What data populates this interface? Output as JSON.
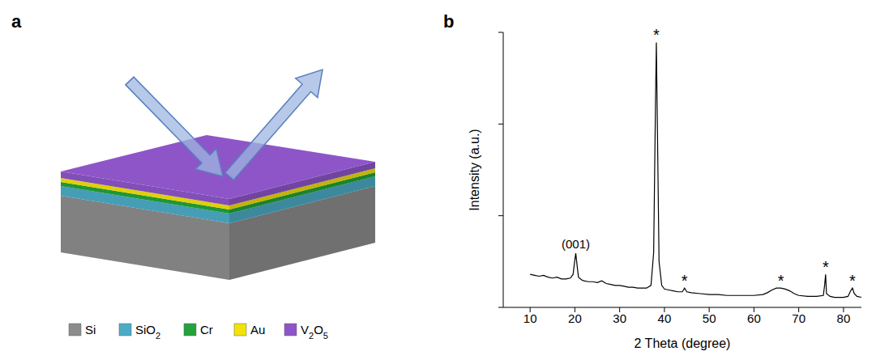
{
  "diagram": {
    "label": "a",
    "layers": [
      {
        "name": "Si",
        "color": "#8c8c8c"
      },
      {
        "name": "SiO2",
        "color": "#4bacc6"
      },
      {
        "name": "Cr",
        "color": "#23a33c"
      },
      {
        "name": "Au",
        "color": "#f2e20a"
      },
      {
        "name": "V2O5",
        "color": "#8e55c8"
      }
    ]
  },
  "chart_data": {
    "label": "b",
    "type": "line",
    "x_label": "2 Theta (degree)",
    "y_label": "Intensity (a.u.)",
    "color": "#000000",
    "xlim": [
      4,
      84
    ],
    "xticks": [
      10,
      20,
      30,
      40,
      50,
      60,
      70,
      80
    ],
    "ylim": [
      0,
      3
    ],
    "yticks": [
      0,
      1,
      2,
      3
    ],
    "tick_labels": "x",
    "x": [
      10,
      11,
      12,
      13,
      14,
      15,
      16,
      17,
      18,
      19,
      19.6,
      20,
      20.2,
      20.4,
      20.8,
      21.5,
      22,
      23,
      24,
      25,
      26,
      27,
      28,
      29,
      30,
      31,
      32,
      33,
      34,
      35,
      36,
      37,
      37.6,
      38,
      38.2,
      38.4,
      38.8,
      39.4,
      40,
      41,
      42,
      43,
      44,
      44.5,
      45,
      46,
      48,
      50,
      52,
      54,
      56,
      58,
      60,
      62,
      63,
      64,
      65,
      66,
      67,
      68,
      69,
      70,
      72,
      74,
      75.5,
      75.8,
      76,
      76.2,
      77,
      78,
      79,
      80,
      81,
      81.6,
      82,
      82.4,
      83,
      84
    ],
    "values": [
      0.36,
      0.35,
      0.34,
      0.35,
      0.33,
      0.32,
      0.33,
      0.31,
      0.31,
      0.32,
      0.36,
      0.52,
      0.59,
      0.5,
      0.33,
      0.3,
      0.29,
      0.28,
      0.28,
      0.27,
      0.29,
      0.26,
      0.25,
      0.24,
      0.24,
      0.23,
      0.22,
      0.22,
      0.21,
      0.21,
      0.21,
      0.24,
      0.6,
      2.2,
      2.89,
      2.1,
      0.5,
      0.24,
      0.2,
      0.19,
      0.18,
      0.17,
      0.17,
      0.21,
      0.17,
      0.16,
      0.15,
      0.14,
      0.14,
      0.13,
      0.13,
      0.13,
      0.13,
      0.14,
      0.16,
      0.19,
      0.21,
      0.21,
      0.2,
      0.18,
      0.15,
      0.13,
      0.12,
      0.12,
      0.13,
      0.25,
      0.36,
      0.15,
      0.12,
      0.11,
      0.11,
      0.11,
      0.12,
      0.18,
      0.21,
      0.15,
      0.12,
      0.11
    ],
    "annotations": [
      {
        "text": "(001)",
        "x": 20.2,
        "y": 0.59
      },
      {
        "text": "*",
        "x": 38.2,
        "y": 2.89
      },
      {
        "text": "*",
        "x": 44.5,
        "y": 0.21
      },
      {
        "text": "*",
        "x": 66,
        "y": 0.21
      },
      {
        "text": "*",
        "x": 76,
        "y": 0.36
      },
      {
        "text": "*",
        "x": 82,
        "y": 0.21
      }
    ]
  }
}
